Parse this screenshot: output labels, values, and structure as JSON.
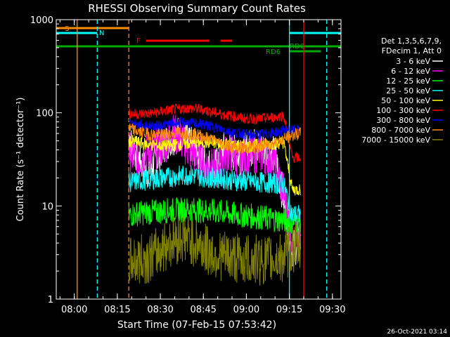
{
  "chart_data": {
    "type": "line",
    "title": "RHESSI Observing Summary Count Rates",
    "xlabel": "Start Time (07-Feb-15 07:53:42)",
    "ylabel": "Count Rate (s⁻¹ detector⁻¹)",
    "y_scale": "log",
    "ylim": [
      1,
      1000
    ],
    "xlim": [
      "07:53:42",
      "09:33:00"
    ],
    "x_ticks": [
      "08:00",
      "08:15",
      "08:30",
      "08:45",
      "09:00",
      "09:15",
      "09:30"
    ],
    "y_ticks": [
      "1",
      "10",
      "100",
      "1000"
    ],
    "legend_position": "right",
    "legend_header": [
      "Det 1,3,5,6,7,9,",
      "FDecim 1, Att 0"
    ],
    "timestamp": "26-Oct-2021 03:14",
    "annotations": [
      {
        "label": "S",
        "color": "#ff8c00"
      },
      {
        "label": "N",
        "color": "#00ffff"
      },
      {
        "label": "F",
        "color": "#ff0000"
      },
      {
        "label": "RD0",
        "color": "#00aa00"
      },
      {
        "label": "RD6",
        "color": "#00aa00"
      }
    ],
    "data_start": "08:19",
    "data_end": "09:19",
    "x_samples": [
      "08:19",
      "08:22",
      "08:25",
      "08:28",
      "08:31",
      "08:34",
      "08:37",
      "08:40",
      "08:43",
      "08:46",
      "08:49",
      "08:52",
      "08:55",
      "08:58",
      "09:01",
      "09:04",
      "09:07",
      "09:10",
      "09:13",
      "09:16",
      "09:19"
    ],
    "series": [
      {
        "name": "3 - 6 keV",
        "color": "#ffffff",
        "values": [
          50,
          35,
          24,
          28,
          45,
          55,
          60,
          48,
          38,
          28,
          25,
          40,
          38,
          34,
          42,
          45,
          40,
          35,
          12,
          3.5,
          4
        ]
      },
      {
        "name": "6 - 12 keV",
        "color": "#ff00ff",
        "values": [
          40,
          30,
          38,
          40,
          45,
          60,
          55,
          40,
          35,
          28,
          24,
          34,
          38,
          30,
          36,
          38,
          34,
          28,
          14,
          4.5,
          5.5
        ]
      },
      {
        "name": "12 - 25 keV",
        "color": "#00ff00",
        "values": [
          8,
          8.3,
          8.5,
          8.6,
          8.8,
          9,
          9.1,
          9.2,
          9,
          8.9,
          8.7,
          8.5,
          8.2,
          8,
          7.8,
          7.6,
          7.4,
          7.2,
          7,
          6.8,
          7
        ]
      },
      {
        "name": "25 - 50 keV",
        "color": "#00ffff",
        "values": [
          18,
          18.5,
          19,
          19.5,
          20,
          20.5,
          21,
          21.5,
          21,
          20.5,
          20,
          19.5,
          19,
          18.5,
          18.2,
          18,
          17.8,
          17.5,
          17.2,
          8,
          8
        ]
      },
      {
        "name": "50 - 100 keV",
        "color": "#ffff00",
        "values": [
          50,
          48,
          46,
          45,
          44,
          45,
          46,
          47,
          48,
          48,
          47,
          46,
          45,
          44,
          44,
          45,
          46,
          47,
          48,
          15,
          15
        ]
      },
      {
        "name": "100 - 300 keV",
        "color": "#ff0000",
        "values": [
          98,
          97,
          98,
          100,
          104,
          108,
          110,
          112,
          110,
          106,
          100,
          96,
          92,
          88,
          86,
          86,
          88,
          90,
          94,
          33,
          33
        ]
      },
      {
        "name": "300 - 800 keV",
        "color": "#0000ff",
        "values": [
          78,
          74,
          72,
          72,
          74,
          76,
          78,
          78,
          76,
          74,
          70,
          66,
          62,
          60,
          58,
          58,
          60,
          62,
          64,
          65,
          65
        ]
      },
      {
        "name": "800 - 7000 keV",
        "color": "#ff8c00",
        "values": [
          68,
          63,
          60,
          58,
          58,
          60,
          62,
          60,
          58,
          54,
          50,
          46,
          43,
          42,
          42,
          43,
          45,
          48,
          52,
          58,
          60
        ]
      },
      {
        "name": "7000 - 15000 keV",
        "color": "#808000",
        "values": [
          2.5,
          2.6,
          2.7,
          3,
          3.6,
          4.2,
          4.6,
          4.4,
          4,
          3.4,
          3,
          2.9,
          2.8,
          2.7,
          2.6,
          2.6,
          2.6,
          2.7,
          2.8,
          3.5,
          3.5
        ]
      }
    ]
  }
}
